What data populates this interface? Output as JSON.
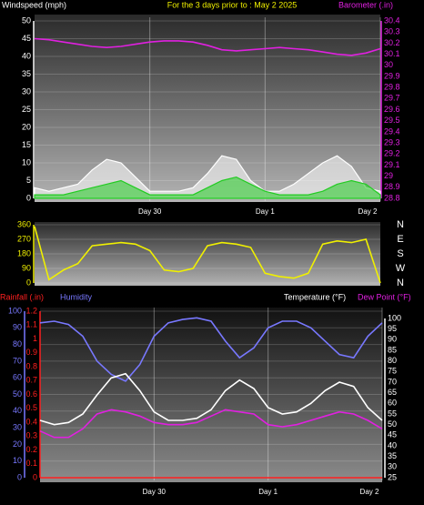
{
  "chart_data": [
    {
      "type": "line",
      "title": "For the 3 days prior to : May 2 2025",
      "y_label": "Windspeed (mph)",
      "y2_label": "Barometer (.in)",
      "xlim": [
        0,
        72
      ],
      "xticks": [
        {
          "value": 24,
          "label": "Day 30"
        },
        {
          "value": 48,
          "label": "Day 1"
        },
        {
          "value": 72,
          "label": "Day 2"
        }
      ],
      "x": [
        0,
        3,
        6,
        9,
        12,
        15,
        18,
        21,
        24,
        27,
        30,
        33,
        36,
        39,
        42,
        45,
        48,
        51,
        54,
        57,
        60,
        63,
        66,
        69,
        72
      ],
      "ylim": [
        0,
        50
      ],
      "yticks": [
        0,
        5,
        10,
        15,
        20,
        25,
        30,
        35,
        40,
        45,
        50
      ],
      "y2lim": [
        28.8,
        30.4
      ],
      "y2ticks": [
        28.8,
        28.9,
        29,
        29.1,
        29.2,
        29.3,
        29.4,
        29.5,
        29.6,
        29.7,
        29.8,
        29.9,
        30,
        30.1,
        30.2,
        30.3,
        30.4
      ],
      "grid": true,
      "series": [
        {
          "color": "#ffffff",
          "area": true,
          "values": [
            3,
            2,
            3,
            4,
            8,
            11,
            10,
            6,
            2,
            2,
            2,
            3,
            7,
            12,
            11,
            5,
            2,
            2,
            4,
            7,
            10,
            12,
            9,
            3,
            2
          ]
        },
        {
          "color": "#22cc22",
          "area": true,
          "values": [
            1,
            1,
            1,
            2,
            3,
            4,
            5,
            3,
            1,
            1,
            1,
            1,
            3,
            5,
            6,
            4,
            2,
            1,
            1,
            1,
            2,
            4,
            5,
            4,
            1
          ]
        },
        {
          "color": "#e020e0",
          "axis": "y2",
          "values": [
            30.24,
            30.23,
            30.21,
            30.19,
            30.17,
            30.16,
            30.17,
            30.19,
            30.21,
            30.22,
            30.22,
            30.21,
            30.18,
            30.14,
            30.13,
            30.14,
            30.15,
            30.16,
            30.15,
            30.14,
            30.12,
            30.1,
            30.09,
            30.11,
            30.15
          ]
        }
      ]
    },
    {
      "type": "line",
      "xlim": [
        0,
        72
      ],
      "x": [
        0,
        3,
        6,
        9,
        12,
        15,
        18,
        21,
        24,
        27,
        30,
        33,
        36,
        39,
        42,
        45,
        48,
        51,
        54,
        57,
        60,
        63,
        66,
        69,
        72
      ],
      "ylim": [
        0,
        360
      ],
      "yticks": [
        0,
        90,
        180,
        270,
        360
      ],
      "direction_labels": [
        "N",
        "W",
        "S",
        "E",
        "N"
      ],
      "grid": true,
      "series": [
        {
          "color": "#f0f000",
          "values": [
            350,
            20,
            80,
            120,
            230,
            240,
            250,
            240,
            200,
            80,
            70,
            90,
            230,
            250,
            240,
            220,
            60,
            40,
            30,
            60,
            240,
            260,
            250,
            270,
            0
          ]
        }
      ]
    },
    {
      "type": "line",
      "xlim": [
        0,
        72
      ],
      "xticks": [
        {
          "value": 24,
          "label": "Day 30"
        },
        {
          "value": 48,
          "label": "Day 1"
        },
        {
          "value": 72,
          "label": "Day 2"
        }
      ],
      "x": [
        0,
        3,
        6,
        9,
        12,
        15,
        18,
        21,
        24,
        27,
        30,
        33,
        36,
        39,
        42,
        45,
        48,
        51,
        54,
        57,
        60,
        63,
        66,
        69,
        72
      ],
      "ylim": [
        0,
        100
      ],
      "yticks": [
        0,
        10,
        20,
        30,
        40,
        50,
        60,
        70,
        80,
        90,
        100
      ],
      "y2lim": [
        25,
        100
      ],
      "y2ticks": [
        25,
        30,
        35,
        40,
        45,
        50,
        55,
        60,
        65,
        70,
        75,
        80,
        85,
        90,
        95,
        100
      ],
      "y3lim": [
        0,
        1.2
      ],
      "y3ticks": [
        0,
        0.1,
        0.2,
        0.3,
        0.4,
        0.5,
        0.6,
        0.7,
        0.8,
        0.9,
        1,
        1.1,
        1.2
      ],
      "grid": true,
      "series": [
        {
          "name": "Rainfall (.in)",
          "color": "#ff2020",
          "axis": "y3",
          "values": [
            0,
            0,
            0,
            0,
            0,
            0,
            0,
            0,
            0,
            0,
            0,
            0,
            0,
            0,
            0,
            0,
            0,
            0,
            0,
            0,
            0,
            0,
            0,
            0,
            0
          ]
        },
        {
          "name": "Humidity",
          "color": "#7878ff",
          "values": [
            93,
            94,
            92,
            85,
            70,
            62,
            58,
            68,
            85,
            93,
            95,
            96,
            94,
            82,
            72,
            78,
            90,
            94,
            94,
            90,
            82,
            74,
            72,
            85,
            93
          ]
        },
        {
          "name": "Temperature (°F)",
          "color": "#ffffff",
          "axis": "y2",
          "values": [
            52,
            50,
            51,
            55,
            64,
            72,
            74,
            66,
            56,
            52,
            52,
            53,
            57,
            66,
            71,
            67,
            58,
            55,
            56,
            60,
            66,
            70,
            68,
            58,
            52
          ]
        },
        {
          "name": "Dew Point (°F)",
          "color": "#e020e0",
          "axis": "y2",
          "values": [
            47,
            44,
            44,
            48,
            55,
            57,
            56,
            54,
            51,
            50,
            50,
            51,
            54,
            57,
            56,
            55,
            50,
            49,
            50,
            52,
            54,
            56,
            55,
            52,
            48
          ]
        }
      ]
    }
  ]
}
